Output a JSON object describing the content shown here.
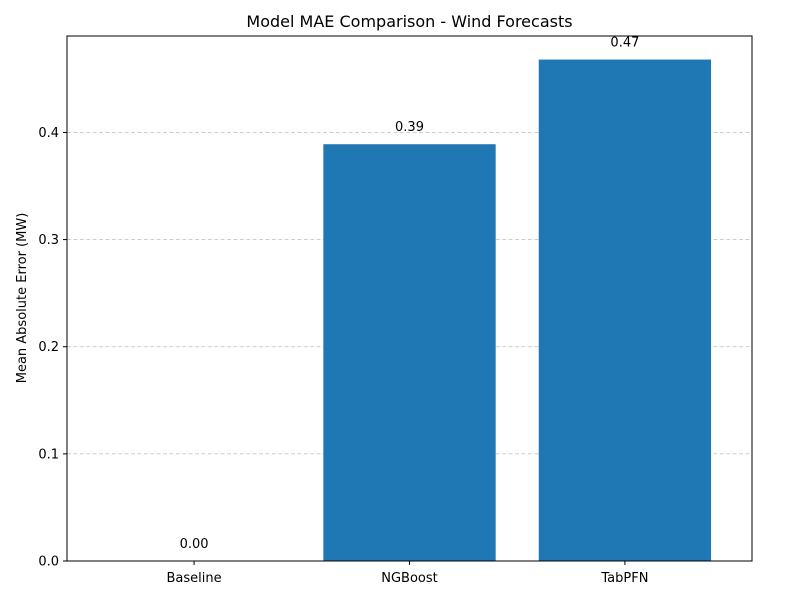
{
  "chart_data": {
    "type": "bar",
    "title": "Model MAE Comparison - Wind Forecasts",
    "xlabel": "",
    "ylabel": "Mean Absolute Error (MW)",
    "categories": [
      "Baseline",
      "NGBoost",
      "TabPFN"
    ],
    "values": [
      0.0,
      0.389,
      0.468
    ],
    "value_labels": [
      "0.00",
      "0.39",
      "0.47"
    ],
    "ylim": [
      0,
      0.49
    ],
    "yticks": [
      0.0,
      0.1,
      0.2,
      0.3,
      0.4
    ],
    "ytick_labels": [
      "0.0",
      "0.1",
      "0.2",
      "0.3",
      "0.4"
    ],
    "grid": "y-dashed",
    "bar_color": "#1f77b4",
    "grid_color": "#c8c8c8"
  }
}
